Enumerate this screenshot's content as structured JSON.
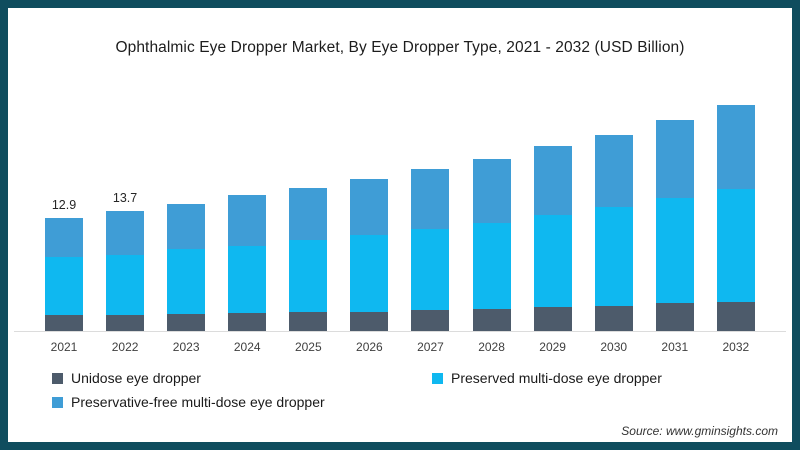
{
  "frame": {
    "border_color": "#0F4D5E",
    "background_color": "#FFFFFF"
  },
  "title": "Ophthalmic Eye Dropper Market, By Eye Dropper Type, 2021 - 2032 (USD Billion)",
  "chart_data": {
    "type": "bar",
    "stacked": true,
    "title": "Ophthalmic Eye Dropper Market, By Eye Dropper Type, 2021 - 2032 (USD Billion)",
    "xlabel": "",
    "ylabel": "USD Billion",
    "ylim": [
      0,
      26
    ],
    "grid": false,
    "legend_position": "bottom",
    "axis_line_color": "#DCDCDC",
    "categories": [
      "2021",
      "2022",
      "2023",
      "2024",
      "2025",
      "2026",
      "2027",
      "2028",
      "2029",
      "2030",
      "2031",
      "2032"
    ],
    "series": [
      {
        "name": "Unidose eye dropper",
        "color": "#4D5B6B",
        "values": [
          1.8,
          1.8,
          1.9,
          2.1,
          2.2,
          2.2,
          2.4,
          2.5,
          2.7,
          2.9,
          3.2,
          3.3
        ]
      },
      {
        "name": "Preserved multi-dose eye dropper",
        "color": "#0FB8F0",
        "values": [
          6.6,
          6.8,
          7.4,
          7.6,
          8.1,
          8.7,
          9.2,
          9.8,
          10.5,
          11.2,
          11.9,
          12.8
        ]
      },
      {
        "name": "Preservative-free multi-dose eye dropper",
        "color": "#3F9DD6",
        "values": [
          4.5,
          5.1,
          5.1,
          5.7,
          5.9,
          6.4,
          6.8,
          7.3,
          7.8,
          8.2,
          8.9,
          9.6
        ]
      }
    ],
    "totals": [
      12.9,
      13.7,
      14.4,
      15.4,
      16.2,
      17.3,
      18.4,
      19.6,
      21.0,
      22.3,
      24.0,
      25.7
    ],
    "value_labels": [
      "12.9",
      "13.7",
      "",
      "",
      "",
      "",
      "",
      "",
      "",
      "",
      "",
      ""
    ]
  },
  "legend": {
    "items": [
      {
        "label": "Unidose eye dropper",
        "color": "#4D5B6B"
      },
      {
        "label": "Preserved multi-dose eye dropper",
        "color": "#0FB8F0"
      },
      {
        "label": "Preservative-free multi-dose eye dropper",
        "color": "#3F9DD6"
      }
    ]
  },
  "source": "Source: www.gminsights.com"
}
